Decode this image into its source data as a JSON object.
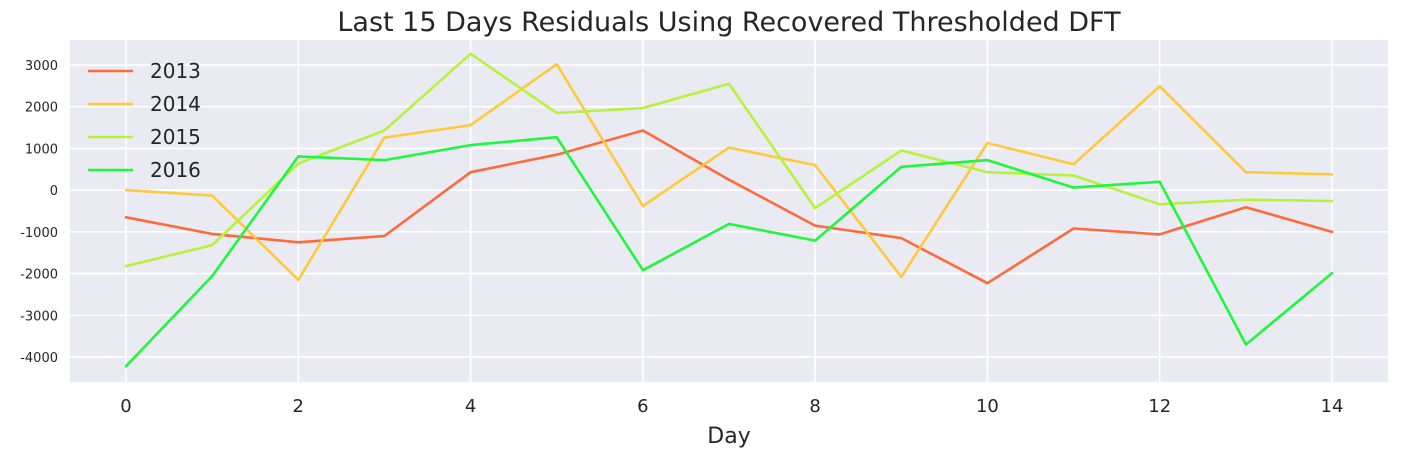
{
  "chart_data": {
    "type": "line",
    "title": "Last 15 Days Residuals Using Recovered Thresholded DFT",
    "xlabel": "Day",
    "ylabel": "",
    "xlim": [
      -0.65,
      14.65
    ],
    "ylim": [
      -4600,
      3600
    ],
    "xticks": [
      0,
      2,
      4,
      6,
      8,
      10,
      12,
      14
    ],
    "yticks": [
      -4000,
      -3000,
      -2000,
      -1000,
      0,
      1000,
      2000,
      3000
    ],
    "grid": true,
    "legend_position": "upper-left",
    "background_color": "#EAEAF2",
    "grid_color": "#FFFFFF",
    "x": [
      0,
      1,
      2,
      3,
      4,
      5,
      6,
      7,
      8,
      9,
      10,
      11,
      12,
      13,
      14
    ],
    "series": [
      {
        "name": "2013",
        "color": "#FF6A3A",
        "values": [
          -650,
          -1050,
          -1250,
          -1100,
          430,
          850,
          1430,
          250,
          -850,
          -1150,
          -2230,
          -920,
          -1060,
          -410,
          -1000
        ]
      },
      {
        "name": "2014",
        "color": "#FFC83D",
        "values": [
          0,
          -130,
          -2150,
          1260,
          1560,
          3020,
          -380,
          1020,
          600,
          -2080,
          1130,
          620,
          2490,
          430,
          380
        ]
      },
      {
        "name": "2015",
        "color": "#B7F23D",
        "values": [
          -1820,
          -1320,
          640,
          1430,
          3270,
          1850,
          1970,
          2550,
          -430,
          950,
          430,
          350,
          -340,
          -230,
          -260
        ]
      },
      {
        "name": "2016",
        "color": "#1EF83C",
        "values": [
          -4220,
          -2060,
          810,
          720,
          1080,
          1270,
          -1920,
          -810,
          -1210,
          560,
          720,
          60,
          200,
          -3700,
          -1990
        ]
      }
    ]
  }
}
